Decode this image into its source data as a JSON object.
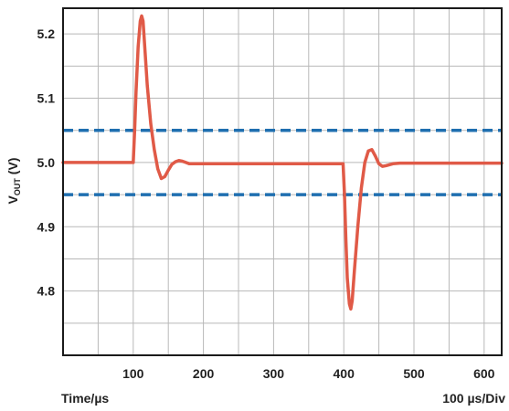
{
  "chart_data": {
    "type": "line",
    "ylabel_main": "V",
    "ylabel_sub": "OUT",
    "ylabel_unit": " (V)",
    "x_axis_left_label": "Time/µs",
    "x_axis_right_label": "100 µs/Div",
    "xlim": [
      0,
      625
    ],
    "ylim": [
      4.7,
      5.24
    ],
    "x_ticks": [
      100,
      200,
      300,
      400,
      500,
      600
    ],
    "x_tick_labels": [
      "100",
      "200",
      "300",
      "400",
      "500",
      "600"
    ],
    "y_ticks": [
      4.8,
      4.9,
      5.0,
      5.1,
      5.2
    ],
    "y_tick_labels": [
      "4.8",
      "4.9",
      "5.0",
      "5.1",
      "5.2"
    ],
    "grid": true,
    "grid_x_step": 50,
    "grid_y_step": 0.05,
    "reference_lines": [
      {
        "y": 5.05,
        "style": "dashed",
        "color": "#1f6fb0"
      },
      {
        "y": 4.95,
        "style": "dashed",
        "color": "#1f6fb0"
      }
    ],
    "series": [
      {
        "color": "#e05a47",
        "x": [
          0,
          100,
          102,
          104,
          107,
          110,
          112,
          114,
          117,
          120,
          125,
          130,
          135,
          140,
          145,
          150,
          155,
          160,
          165,
          170,
          175,
          180,
          190,
          200,
          215,
          250,
          300,
          350,
          399,
          401,
          403,
          405,
          408,
          410,
          412,
          415,
          420,
          425,
          430,
          435,
          440,
          445,
          450,
          455,
          460,
          470,
          480,
          500,
          550,
          625
        ],
        "y": [
          5.0,
          5.0,
          5.05,
          5.11,
          5.18,
          5.22,
          5.228,
          5.22,
          5.17,
          5.12,
          5.06,
          5.02,
          4.99,
          4.975,
          4.978,
          4.988,
          4.997,
          5.001,
          5.003,
          5.002,
          5.0,
          4.998,
          4.998,
          4.998,
          4.998,
          4.998,
          4.998,
          4.998,
          4.998,
          4.95,
          4.88,
          4.82,
          4.78,
          4.772,
          4.785,
          4.83,
          4.9,
          4.96,
          5.0,
          5.018,
          5.02,
          5.01,
          4.998,
          4.994,
          4.995,
          4.998,
          4.999,
          4.999,
          4.999,
          4.999
        ]
      }
    ]
  }
}
